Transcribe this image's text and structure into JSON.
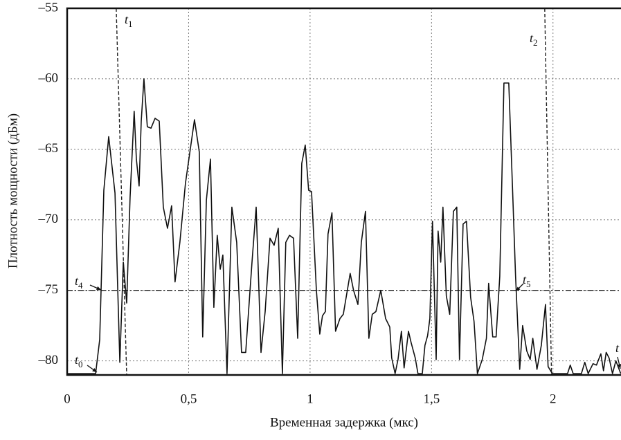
{
  "chart_data": {
    "type": "line",
    "x_label": "Временная задержка (мкс)",
    "y_label": "Плотность мощности (дБм)",
    "xlim": [
      0,
      2.28
    ],
    "ylim": [
      -81,
      -55
    ],
    "xticks": [
      0,
      {
        "value": 0.5,
        "label": "0,5"
      },
      1,
      {
        "value": 1.5,
        "label": "1,5"
      },
      2
    ],
    "yticks": [
      {
        "value": -55,
        "label": "–55"
      },
      {
        "value": -60,
        "label": "–60"
      },
      {
        "value": -65,
        "label": "–65"
      },
      {
        "value": -70,
        "label": "–70"
      },
      {
        "value": -75,
        "label": "–75"
      },
      {
        "value": -80,
        "label": "–80"
      }
    ],
    "grid": true,
    "color": "#111111",
    "x": [
      0,
      0.117,
      0.134,
      0.151,
      0.171,
      0.197,
      0.217,
      0.231,
      0.245,
      0.259,
      0.276,
      0.285,
      0.296,
      0.305,
      0.316,
      0.33,
      0.345,
      0.362,
      0.379,
      0.396,
      0.413,
      0.43,
      0.444,
      0.464,
      0.487,
      0.524,
      0.544,
      0.558,
      0.573,
      0.59,
      0.604,
      0.618,
      0.63,
      0.641,
      0.658,
      0.678,
      0.698,
      0.718,
      0.735,
      0.761,
      0.778,
      0.798,
      0.815,
      0.835,
      0.852,
      0.869,
      0.886,
      0.9,
      0.915,
      0.932,
      0.949,
      0.966,
      0.98,
      0.994,
      1.006,
      1.026,
      1.04,
      1.051,
      1.063,
      1.074,
      1.09,
      1.105,
      1.123,
      1.137,
      1.165,
      1.179,
      1.197,
      1.211,
      1.228,
      1.242,
      1.256,
      1.271,
      1.291,
      1.311,
      1.328,
      1.336,
      1.35,
      1.362,
      1.376,
      1.387,
      1.405,
      1.416,
      1.433,
      1.444,
      1.462,
      1.473,
      1.484,
      1.493,
      1.504,
      1.519,
      1.527,
      1.538,
      1.547,
      1.561,
      1.575,
      1.59,
      1.604,
      1.615,
      1.63,
      1.644,
      1.661,
      1.675,
      1.689,
      1.709,
      1.726,
      1.735,
      1.752,
      1.766,
      1.781,
      1.798,
      1.818,
      1.835,
      1.846,
      1.863,
      1.875,
      1.892,
      1.906,
      1.917,
      1.934,
      1.952,
      1.969,
      1.98,
      1.997,
      2.06,
      2.071,
      2.083,
      2.117,
      2.131,
      2.145,
      2.165,
      2.179,
      2.197,
      2.208,
      2.219,
      2.231,
      2.245,
      2.259,
      2.279
    ],
    "values": [
      -80.9,
      -80.9,
      -78.5,
      -67.9,
      -64.1,
      -68.1,
      -80.1,
      -73.0,
      -75.9,
      -68.4,
      -62.3,
      -65.7,
      -67.6,
      -63.0,
      -60.0,
      -63.4,
      -63.5,
      -62.8,
      -63.0,
      -69.1,
      -70.6,
      -69.0,
      -74.4,
      -71.6,
      -67.4,
      -62.9,
      -65.2,
      -78.3,
      -68.6,
      -65.7,
      -76.2,
      -71.1,
      -73.5,
      -72.5,
      -80.9,
      -69.1,
      -71.6,
      -79.4,
      -79.4,
      -73.0,
      -69.1,
      -79.4,
      -76.5,
      -71.3,
      -71.8,
      -70.6,
      -80.9,
      -71.6,
      -71.1,
      -71.3,
      -78.4,
      -66.0,
      -64.7,
      -67.9,
      -68.0,
      -75.0,
      -78.1,
      -76.8,
      -76.5,
      -71.0,
      -69.5,
      -77.9,
      -77.0,
      -76.7,
      -73.8,
      -75.0,
      -76.0,
      -71.6,
      -69.4,
      -78.4,
      -76.7,
      -76.5,
      -75.0,
      -77.0,
      -77.6,
      -79.8,
      -80.9,
      -79.9,
      -77.9,
      -80.5,
      -77.9,
      -78.7,
      -79.8,
      -80.9,
      -80.9,
      -78.9,
      -78.2,
      -77.0,
      -70.1,
      -79.9,
      -70.8,
      -73.0,
      -69.1,
      -75.4,
      -76.7,
      -69.4,
      -69.1,
      -79.9,
      -70.3,
      -70.1,
      -75.5,
      -77.2,
      -80.9,
      -79.9,
      -78.4,
      -74.5,
      -78.3,
      -78.3,
      -74.0,
      -60.3,
      -60.3,
      -68.6,
      -74.0,
      -80.6,
      -77.5,
      -79.3,
      -79.9,
      -78.4,
      -80.6,
      -78.9,
      -76.0,
      -80.4,
      -80.9,
      -80.9,
      -80.3,
      -80.9,
      -80.9,
      -80.1,
      -80.9,
      -80.2,
      -80.3,
      -79.5,
      -80.7,
      -79.4,
      -79.8,
      -80.9,
      -80.0,
      -80.9
    ],
    "reference_lines": [
      {
        "x": [
          0.202,
          0.245
        ],
        "y": [
          -55,
          -81
        ]
      },
      {
        "x": [
          1.966,
          1.994
        ],
        "y": [
          -55,
          -81
        ]
      },
      {
        "x": [
          0,
          2.28
        ],
        "y": [
          -75,
          -75
        ]
      }
    ],
    "annotations": [
      {
        "text": "t",
        "sub": "0"
      },
      {
        "text": "t",
        "sub": "1"
      },
      {
        "text": "t",
        "sub": "2"
      },
      {
        "text": "t",
        "sub": "4"
      },
      {
        "text": "t",
        "sub": "5"
      },
      {
        "text": "t"
      }
    ]
  }
}
